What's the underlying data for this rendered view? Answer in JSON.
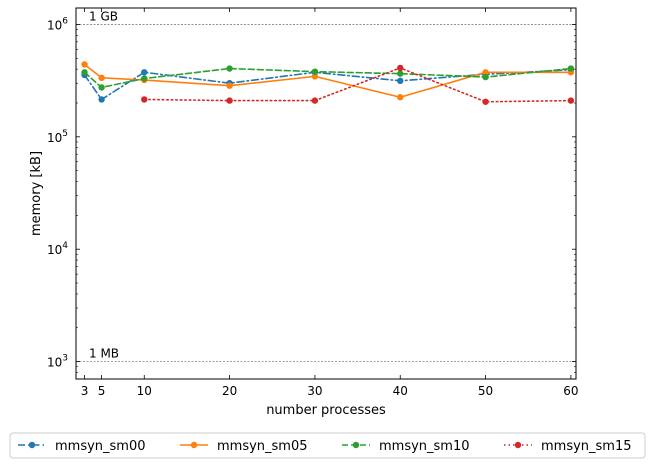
{
  "chart_data": {
    "type": "line",
    "xlabel": "number processes",
    "ylabel": "memory [kB]",
    "yscale": "log",
    "xlim": [
      2.0,
      60.6
    ],
    "ylim": [
      700,
      1400000
    ],
    "xticks": [
      3,
      5,
      10,
      20,
      30,
      40,
      50,
      60
    ],
    "yticks": [
      {
        "value": 1000,
        "base": "10",
        "exp": "3"
      },
      {
        "value": 10000,
        "base": "10",
        "exp": "4"
      },
      {
        "value": 100000,
        "base": "10",
        "exp": "5"
      },
      {
        "value": 1000000,
        "base": "10",
        "exp": "6"
      }
    ],
    "grid": false,
    "reference_lines": [
      {
        "value": 1000000,
        "label": "1 GB"
      },
      {
        "value": 1000,
        "label": "1 MB"
      }
    ],
    "legend_position": "bottom, outside plot",
    "series": [
      {
        "name": "mmsyn_sm00",
        "color": "#1f77b4",
        "dash": "dashdot",
        "x": [
          3,
          5,
          10,
          20,
          30,
          40,
          50,
          60
        ],
        "y": [
          355000,
          215000,
          375000,
          300000,
          375000,
          315000,
          360000,
          395000
        ]
      },
      {
        "name": "mmsyn_sm05",
        "color": "#ff7f0e",
        "dash": "solid",
        "x": [
          3,
          5,
          10,
          20,
          30,
          40,
          50,
          60
        ],
        "y": [
          440000,
          335000,
          320000,
          285000,
          345000,
          225000,
          375000,
          375000
        ]
      },
      {
        "name": "mmsyn_sm10",
        "color": "#2ca02c",
        "dash": "dashed",
        "x": [
          3,
          5,
          10,
          20,
          30,
          40,
          50,
          60
        ],
        "y": [
          375000,
          275000,
          330000,
          405000,
          380000,
          365000,
          340000,
          405000
        ]
      },
      {
        "name": "mmsyn_sm15",
        "color": "#d62728",
        "dash": "dotted",
        "x": [
          10,
          20,
          30,
          40,
          50,
          60
        ],
        "y": [
          215000,
          210000,
          210000,
          410000,
          205000,
          210000
        ]
      }
    ]
  }
}
